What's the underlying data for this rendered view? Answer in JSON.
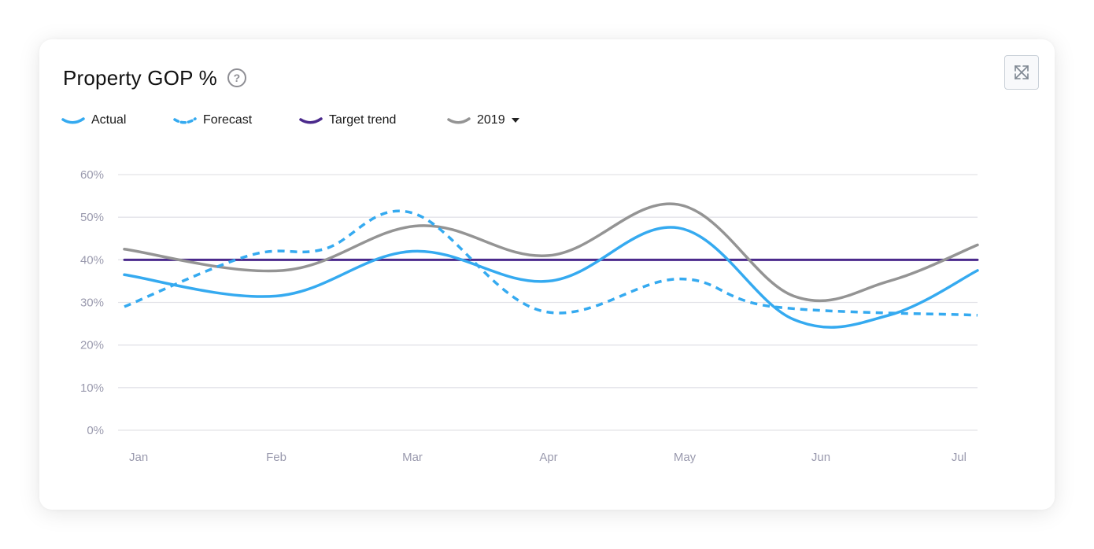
{
  "header": {
    "title": "Property GOP %",
    "help_icon": "question-circle-icon",
    "expand_icon": "expand-arrows-icon"
  },
  "legend": {
    "actual": "Actual",
    "forecast": "Forecast",
    "target": "Target trend",
    "year": "2019"
  },
  "colors": {
    "actual": "#35aaf0",
    "forecast": "#35aaf0",
    "target": "#4b2a8c",
    "year": "#949494",
    "grid": "#e3e3e8"
  },
  "chart_data": {
    "type": "line",
    "categories": [
      "Jan",
      "Feb",
      "Mar",
      "Apr",
      "May",
      "Jun",
      "Jul"
    ],
    "y_ticks": [
      "0%",
      "10%",
      "20%",
      "30%",
      "40%",
      "50%",
      "60%"
    ],
    "ylim": [
      0,
      60
    ],
    "grid": true,
    "legend_position": "top-left",
    "series": [
      {
        "name": "Actual",
        "style": "solid",
        "x": [
          0,
          1,
          2,
          3,
          3.95,
          4.8,
          5.5,
          6
        ],
        "values": [
          36.5,
          31.5,
          42,
          35,
          47.5,
          26,
          27,
          37.5
        ]
      },
      {
        "name": "Forecast",
        "style": "dashed",
        "x": [
          0,
          0.8,
          1.35,
          2,
          2.95,
          3.95,
          4.65,
          6
        ],
        "values": [
          29,
          41,
          42.5,
          51,
          28,
          35.5,
          29,
          27
        ]
      },
      {
        "name": "Target trend",
        "style": "solid",
        "x": [
          0,
          6
        ],
        "values": [
          40,
          40
        ]
      },
      {
        "name": "2019",
        "style": "solid",
        "x": [
          0,
          1.05,
          2.05,
          3,
          3.95,
          4.8,
          5.5,
          6
        ],
        "values": [
          42.5,
          37.5,
          48,
          41,
          53,
          31.5,
          35,
          43.5
        ]
      }
    ]
  }
}
